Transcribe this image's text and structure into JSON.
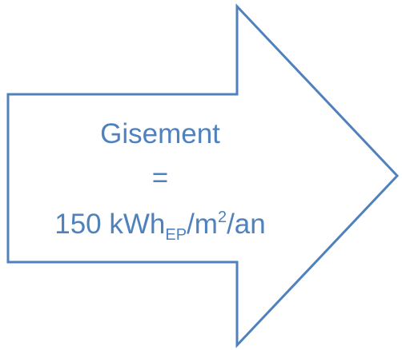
{
  "diagram": {
    "stroke_color": "#4f81bd",
    "fill_color": "#ffffff",
    "text_color": "#4f81bd",
    "lines": {
      "title": "Gisement",
      "equals": "=",
      "value": {
        "number_unit": "150 kWh",
        "subscript": "EP",
        "slash_m": "/m",
        "superscript": "2",
        "suffix": "/an"
      }
    }
  }
}
